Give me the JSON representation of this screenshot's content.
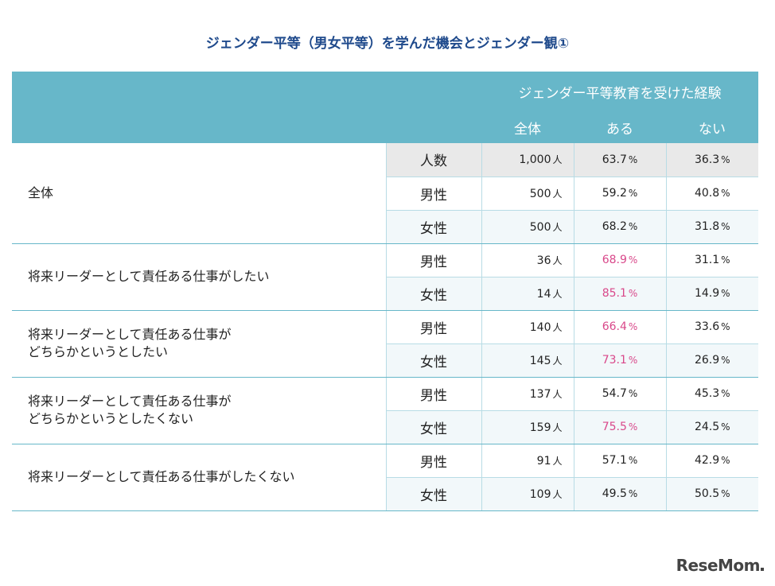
{
  "title": "ジェンダー平等（男女平等）を学んだ機会とジェンダー観①",
  "header": {
    "group": "ジェンダー平等教育を受けた経験",
    "columns": [
      "全体",
      "ある",
      "ない"
    ]
  },
  "groups": [
    {
      "label": "全体",
      "rows": [
        {
          "sub": "人数",
          "total": "1,000",
          "aru": "63.7",
          "nai": "36.3"
        },
        {
          "sub": "男性",
          "total": "500",
          "aru": "59.2",
          "nai": "40.8"
        },
        {
          "sub": "女性",
          "total": "500",
          "aru": "68.2",
          "nai": "31.8"
        }
      ]
    },
    {
      "label": "将来リーダーとして責任ある仕事がしたい",
      "rows": [
        {
          "sub": "男性",
          "total": "36",
          "aru": "68.9",
          "nai": "31.1"
        },
        {
          "sub": "女性",
          "total": "14",
          "aru": "85.1",
          "nai": "14.9"
        }
      ]
    },
    {
      "label": "将来リーダーとして責任ある仕事が",
      "label2": "どちらかというとしたい",
      "rows": [
        {
          "sub": "男性",
          "total": "140",
          "aru": "66.4",
          "nai": "33.6"
        },
        {
          "sub": "女性",
          "total": "145",
          "aru": "73.1",
          "nai": "26.9"
        }
      ]
    },
    {
      "label": "将来リーダーとして責任ある仕事が",
      "label2": "どちらかというとしたくない",
      "rows": [
        {
          "sub": "男性",
          "total": "137",
          "aru": "54.7",
          "nai": "45.3"
        },
        {
          "sub": "女性",
          "total": "159",
          "aru": "75.5",
          "nai": "24.5"
        }
      ]
    },
    {
      "label": "将来リーダーとして責任ある仕事がしたくない",
      "rows": [
        {
          "sub": "男性",
          "total": "91",
          "aru": "57.1",
          "nai": "42.9"
        },
        {
          "sub": "女性",
          "total": "109",
          "aru": "49.5",
          "nai": "50.5"
        }
      ]
    }
  ],
  "units": {
    "person": "人",
    "percent": "%"
  },
  "logo": "ReseMom",
  "colors": {
    "header_bg": "#67b7c9",
    "highlight": "#d9488a",
    "title": "#1f4a8c"
  }
}
